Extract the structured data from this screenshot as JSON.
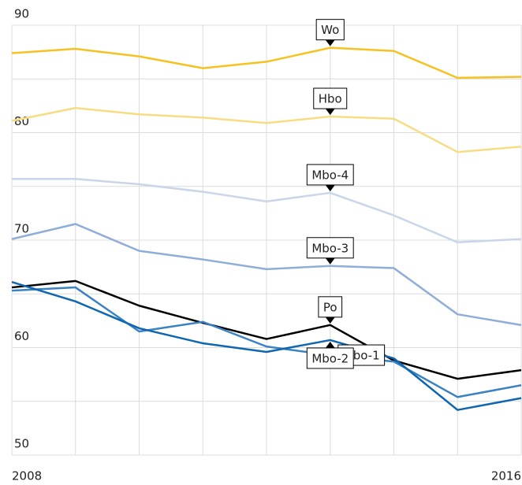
{
  "chart_data": {
    "type": "line",
    "x": [
      2008,
      2009,
      2010,
      2011,
      2012,
      2013,
      2014,
      2015,
      2016
    ],
    "xlim": [
      2008,
      2016
    ],
    "xticks": [
      2008,
      2016
    ],
    "ylim": [
      50,
      90
    ],
    "yticks": [
      50,
      60,
      70,
      80,
      90
    ],
    "minor_yticks": [
      55,
      65,
      75,
      85
    ],
    "grid": true,
    "series": [
      {
        "name": "Wo",
        "color": "#f5c221",
        "values": [
          87.4,
          87.8,
          87.1,
          86.0,
          86.6,
          87.9,
          87.6,
          85.1,
          85.2
        ]
      },
      {
        "name": "Hbo",
        "color": "#f8dc84",
        "values": [
          81.1,
          82.3,
          81.7,
          81.4,
          80.9,
          81.5,
          81.3,
          78.2,
          78.7
        ]
      },
      {
        "name": "Mbo-4",
        "color": "#c8d5ea",
        "values": [
          75.7,
          75.7,
          75.2,
          74.5,
          73.6,
          74.4,
          72.3,
          69.8,
          70.1
        ]
      },
      {
        "name": "Mbo-3",
        "color": "#8fadd9",
        "values": [
          70.1,
          71.5,
          69.0,
          68.2,
          67.3,
          67.6,
          67.4,
          63.1,
          62.1
        ]
      },
      {
        "name": "Po",
        "color": "#000000",
        "values": [
          65.6,
          66.2,
          63.9,
          62.3,
          60.8,
          62.1,
          58.8,
          57.1,
          57.9
        ]
      },
      {
        "name": "Mbo-1",
        "color": "#3a82c4",
        "values": [
          65.3,
          65.6,
          61.5,
          62.4,
          60.1,
          59.3,
          58.7,
          55.4,
          56.5
        ]
      },
      {
        "name": "Mbo-2",
        "color": "#1166b0",
        "values": [
          66.1,
          64.3,
          61.8,
          60.4,
          59.6,
          60.7,
          59.0,
          54.2,
          55.3
        ]
      }
    ]
  }
}
